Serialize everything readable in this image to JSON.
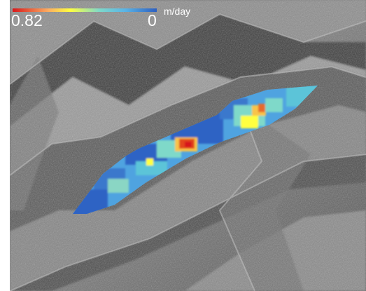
{
  "legend": {
    "max_label": "0.82",
    "min_label": "0",
    "unit": "m/day",
    "colors": [
      "#d7191c",
      "#fdae61",
      "#ffff3f",
      "#7fd9c9",
      "#5ab4e6",
      "#2d5fc0"
    ]
  },
  "velocity_range": [
    0,
    0.82
  ]
}
